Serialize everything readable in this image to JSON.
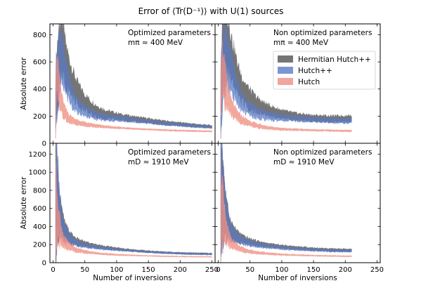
{
  "figure": {
    "title": "Error of ⟨Tr(D⁻¹)⟩ with U(1) sources"
  },
  "chart_data": [
    {
      "type": "area",
      "position": "top-left",
      "annotation": [
        "Optimized parameters",
        "mπ ≈ 400 MeV"
      ],
      "ylabel": "Absolute error",
      "xlabel": "",
      "xlim": [
        -5,
        255
      ],
      "ylim": [
        0,
        880
      ],
      "xticks": [
        0,
        50,
        100,
        150,
        200,
        250
      ],
      "yticks": [
        0,
        200,
        400,
        600,
        800
      ],
      "x_end": 250,
      "series": [
        {
          "name": "Hermitian Hutch++",
          "color": "#6e6e6e",
          "x": [
            4,
            6,
            8,
            10,
            12,
            14,
            17,
            20,
            25,
            30,
            35,
            40,
            50,
            60,
            70,
            80,
            90,
            100,
            110,
            125,
            150,
            175,
            200,
            225,
            250
          ],
          "center": [
            290,
            470,
            560,
            640,
            700,
            700,
            640,
            580,
            510,
            450,
            400,
            360,
            300,
            260,
            235,
            215,
            205,
            198,
            190,
            180,
            165,
            150,
            140,
            130,
            122
          ],
          "half": [
            200,
            230,
            240,
            250,
            240,
            220,
            180,
            150,
            120,
            100,
            85,
            75,
            60,
            50,
            40,
            35,
            30,
            25,
            22,
            20,
            18,
            16,
            14,
            12,
            10
          ]
        },
        {
          "name": "Hutch++",
          "color": "#5a7ac4",
          "x": [
            4,
            6,
            8,
            10,
            12,
            14,
            17,
            20,
            25,
            30,
            35,
            40,
            50,
            60,
            70,
            80,
            90,
            100,
            110,
            125,
            150,
            175,
            200,
            225,
            250
          ],
          "center": [
            260,
            430,
            500,
            570,
            620,
            610,
            550,
            480,
            400,
            340,
            300,
            270,
            235,
            215,
            200,
            190,
            185,
            182,
            178,
            170,
            158,
            145,
            135,
            125,
            118
          ],
          "half": [
            190,
            220,
            230,
            230,
            210,
            190,
            150,
            120,
            90,
            70,
            55,
            45,
            35,
            30,
            25,
            22,
            20,
            18,
            16,
            14,
            12,
            11,
            10,
            9,
            8
          ]
        },
        {
          "name": "Hutch",
          "color": "#ef8f83",
          "x": [
            4,
            6,
            8,
            10,
            12,
            14,
            17,
            20,
            25,
            30,
            35,
            40,
            50,
            60,
            70,
            80,
            90,
            100,
            110,
            125,
            150,
            175,
            200,
            225,
            250
          ],
          "center": [
            320,
            500,
            450,
            380,
            320,
            280,
            240,
            210,
            185,
            170,
            160,
            150,
            140,
            133,
            127,
            122,
            118,
            115,
            112,
            108,
            102,
            97,
            93,
            90,
            88
          ],
          "half": [
            240,
            160,
            130,
            110,
            90,
            70,
            50,
            40,
            30,
            25,
            20,
            18,
            15,
            12,
            10,
            9,
            8,
            7,
            6,
            6,
            5,
            5,
            5,
            5,
            5
          ]
        }
      ]
    },
    {
      "type": "area",
      "position": "top-right",
      "annotation": [
        "Non optimized parameters",
        "mπ ≈ 400 MeV"
      ],
      "ylabel": "",
      "xlabel": "",
      "xlim": [
        -5,
        255
      ],
      "ylim": [
        0,
        880
      ],
      "xticks": [
        0,
        50,
        100,
        150,
        200,
        250
      ],
      "yticks": [
        0,
        200,
        400,
        600,
        800
      ],
      "x_end": 210,
      "legend": {
        "placement": "top-right",
        "entries": [
          "Hermitian Hutch++",
          "Hutch++",
          "Hutch"
        ]
      },
      "series": [
        {
          "name": "Hermitian Hutch++",
          "color": "#6e6e6e",
          "x": [
            4,
            6,
            8,
            10,
            12,
            14,
            17,
            20,
            25,
            30,
            35,
            40,
            50,
            60,
            70,
            80,
            90,
            100,
            110,
            125,
            150,
            175,
            190,
            210
          ],
          "center": [
            350,
            560,
            640,
            700,
            740,
            740,
            700,
            640,
            560,
            480,
            420,
            380,
            320,
            285,
            260,
            240,
            225,
            215,
            205,
            195,
            185,
            180,
            180,
            182
          ],
          "half": [
            250,
            260,
            260,
            260,
            240,
            220,
            190,
            160,
            130,
            110,
            95,
            85,
            70,
            55,
            45,
            40,
            35,
            30,
            28,
            25,
            22,
            22,
            22,
            22
          ]
        },
        {
          "name": "Hutch++",
          "color": "#5a7ac4",
          "x": [
            4,
            6,
            8,
            10,
            12,
            14,
            17,
            20,
            25,
            30,
            35,
            40,
            50,
            60,
            70,
            80,
            90,
            100,
            110,
            125,
            150,
            175,
            190,
            210
          ],
          "center": [
            300,
            500,
            580,
            620,
            640,
            630,
            580,
            520,
            440,
            370,
            320,
            290,
            250,
            225,
            210,
            200,
            192,
            188,
            185,
            180,
            172,
            168,
            165,
            165
          ],
          "half": [
            230,
            240,
            240,
            230,
            210,
            190,
            160,
            130,
            100,
            80,
            65,
            55,
            45,
            38,
            32,
            28,
            25,
            22,
            20,
            18,
            16,
            16,
            16,
            16
          ]
        },
        {
          "name": "Hutch",
          "color": "#ef8f83",
          "x": [
            4,
            6,
            8,
            10,
            12,
            14,
            17,
            20,
            25,
            30,
            35,
            40,
            50,
            60,
            70,
            80,
            90,
            100,
            110,
            125,
            150,
            175,
            190,
            210
          ],
          "center": [
            380,
            540,
            500,
            440,
            400,
            360,
            310,
            270,
            230,
            200,
            180,
            165,
            145,
            130,
            120,
            113,
            108,
            105,
            102,
            100,
            96,
            94,
            92,
            91
          ],
          "half": [
            260,
            180,
            160,
            140,
            120,
            100,
            70,
            55,
            45,
            35,
            30,
            25,
            20,
            16,
            13,
            11,
            10,
            9,
            8,
            7,
            6,
            6,
            6,
            6
          ]
        }
      ]
    },
    {
      "type": "area",
      "position": "bottom-left",
      "annotation": [
        "Optimized parameters",
        "mD ≈ 1910 MeV"
      ],
      "ylabel": "Absolute error",
      "xlabel": "Number of inversions",
      "xlim": [
        -5,
        255
      ],
      "ylim": [
        0,
        1320
      ],
      "xticks": [
        0,
        50,
        100,
        150,
        200,
        250
      ],
      "yticks": [
        0,
        200,
        400,
        600,
        800,
        1000,
        1200
      ],
      "x_end": 250,
      "series": [
        {
          "name": "Hermitian Hutch++",
          "color": "#6e6e6e",
          "x": [
            4,
            6,
            8,
            10,
            12,
            14,
            17,
            20,
            25,
            30,
            35,
            40,
            50,
            60,
            70,
            80,
            90,
            100,
            110,
            125,
            150,
            175,
            200,
            225,
            250
          ],
          "center": [
            700,
            760,
            660,
            560,
            480,
            420,
            370,
            330,
            290,
            260,
            240,
            225,
            205,
            190,
            180,
            170,
            160,
            152,
            145,
            135,
            122,
            112,
            105,
            100,
            97
          ],
          "half": [
            600,
            500,
            380,
            280,
            200,
            150,
            110,
            85,
            65,
            50,
            40,
            35,
            28,
            24,
            20,
            18,
            16,
            14,
            13,
            12,
            11,
            10,
            10,
            9,
            9
          ]
        },
        {
          "name": "Hutch++",
          "color": "#5a7ac4",
          "x": [
            4,
            6,
            8,
            10,
            12,
            14,
            17,
            20,
            25,
            30,
            35,
            40,
            50,
            60,
            70,
            80,
            90,
            100,
            110,
            125,
            150,
            175,
            200,
            225,
            250
          ],
          "center": [
            680,
            740,
            640,
            540,
            460,
            400,
            350,
            310,
            270,
            240,
            220,
            205,
            188,
            175,
            165,
            157,
            150,
            144,
            138,
            130,
            118,
            109,
            102,
            97,
            94
          ],
          "half": [
            560,
            480,
            360,
            260,
            190,
            140,
            100,
            80,
            60,
            45,
            36,
            30,
            24,
            20,
            17,
            15,
            13,
            12,
            11,
            10,
            9,
            9,
            8,
            8,
            8
          ]
        },
        {
          "name": "Hutch",
          "color": "#ef8f83",
          "x": [
            4,
            6,
            8,
            10,
            12,
            14,
            17,
            20,
            25,
            30,
            35,
            40,
            50,
            60,
            70,
            80,
            90,
            100,
            110,
            125,
            150,
            175,
            200,
            225,
            250
          ],
          "center": [
            600,
            560,
            460,
            380,
            320,
            280,
            240,
            210,
            180,
            160,
            145,
            135,
            120,
            110,
            103,
            97,
            92,
            88,
            85,
            81,
            75,
            71,
            68,
            66,
            65
          ],
          "half": [
            420,
            320,
            220,
            160,
            120,
            90,
            65,
            50,
            38,
            30,
            25,
            21,
            16,
            13,
            11,
            10,
            9,
            8,
            7,
            6,
            5,
            5,
            5,
            5,
            5
          ]
        }
      ]
    },
    {
      "type": "area",
      "position": "bottom-right",
      "annotation": [
        "Non optimized parameters",
        "mD ≈ 1910 MeV"
      ],
      "ylabel": "",
      "xlabel": "Number of inversions",
      "xlim": [
        -5,
        255
      ],
      "ylim": [
        0,
        1320
      ],
      "xticks": [
        0,
        50,
        100,
        150,
        200,
        250
      ],
      "yticks": [
        0,
        200,
        400,
        600,
        800,
        1000,
        1200
      ],
      "x_end": 210,
      "series": [
        {
          "name": "Hermitian Hutch++",
          "color": "#6e6e6e",
          "x": [
            4,
            6,
            8,
            10,
            12,
            14,
            17,
            20,
            25,
            30,
            35,
            40,
            50,
            60,
            70,
            80,
            90,
            100,
            110,
            125,
            150,
            175,
            190,
            210
          ],
          "center": [
            720,
            780,
            700,
            600,
            520,
            460,
            400,
            360,
            320,
            290,
            270,
            252,
            230,
            215,
            200,
            190,
            182,
            175,
            170,
            162,
            150,
            142,
            138,
            135
          ],
          "half": [
            620,
            520,
            400,
            300,
            220,
            170,
            130,
            100,
            75,
            60,
            50,
            42,
            35,
            30,
            26,
            23,
            21,
            20,
            19,
            18,
            16,
            15,
            15,
            14
          ]
        },
        {
          "name": "Hutch++",
          "color": "#5a7ac4",
          "x": [
            4,
            6,
            8,
            10,
            12,
            14,
            17,
            20,
            25,
            30,
            35,
            40,
            50,
            60,
            70,
            80,
            90,
            100,
            110,
            125,
            150,
            175,
            190,
            210
          ],
          "center": [
            700,
            760,
            680,
            580,
            500,
            440,
            380,
            340,
            300,
            268,
            248,
            232,
            212,
            198,
            186,
            177,
            170,
            163,
            158,
            150,
            140,
            133,
            130,
            128
          ],
          "half": [
            580,
            500,
            380,
            280,
            210,
            160,
            120,
            90,
            68,
            52,
            42,
            36,
            30,
            26,
            22,
            20,
            18,
            17,
            16,
            15,
            14,
            13,
            13,
            12
          ]
        },
        {
          "name": "Hutch",
          "color": "#ef8f83",
          "x": [
            4,
            6,
            8,
            10,
            12,
            14,
            17,
            20,
            25,
            30,
            35,
            40,
            50,
            60,
            70,
            80,
            90,
            100,
            110,
            125,
            150,
            175,
            190,
            210
          ],
          "center": [
            620,
            600,
            500,
            420,
            360,
            310,
            260,
            225,
            190,
            165,
            150,
            138,
            122,
            112,
            105,
            99,
            94,
            90,
            87,
            83,
            78,
            74,
            72,
            71
          ],
          "half": [
            440,
            340,
            240,
            170,
            130,
            100,
            75,
            58,
            42,
            33,
            27,
            23,
            18,
            15,
            13,
            11,
            10,
            9,
            8,
            7,
            6,
            6,
            6,
            6
          ]
        }
      ]
    }
  ]
}
